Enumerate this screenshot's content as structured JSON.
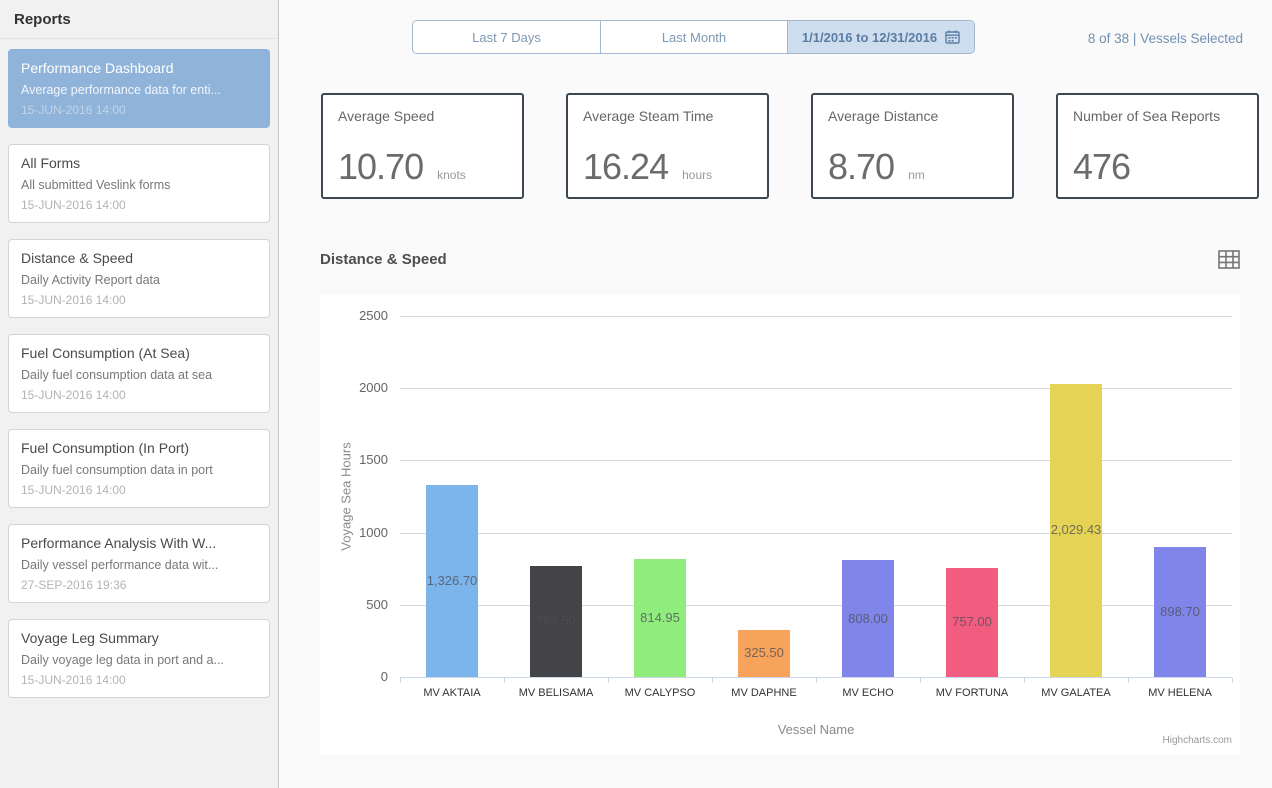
{
  "colors": {
    "selected_card": "#8fb3d9",
    "active_button_bg": "#cfdeee",
    "active_button_text": "#5b7da3",
    "kpi_border": "#3d4751",
    "vessels_text": "#7191b2"
  },
  "sidebar": {
    "title": "Reports",
    "items": [
      {
        "title": "Performance Dashboard",
        "subtitle": "Average performance data for enti...",
        "date": "15-JUN-2016 14:00",
        "selected": true
      },
      {
        "title": "All Forms",
        "subtitle": "All submitted Veslink forms",
        "date": "15-JUN-2016 14:00",
        "selected": false
      },
      {
        "title": "Distance & Speed",
        "subtitle": "Daily Activity Report data",
        "date": "15-JUN-2016 14:00",
        "selected": false
      },
      {
        "title": "Fuel Consumption (At Sea)",
        "subtitle": "Daily fuel consumption data at sea",
        "date": "15-JUN-2016 14:00",
        "selected": false
      },
      {
        "title": "Fuel Consumption (In Port)",
        "subtitle": "Daily fuel consumption data in port",
        "date": "15-JUN-2016 14:00",
        "selected": false
      },
      {
        "title": "Performance Analysis With W...",
        "subtitle": "Daily vessel performance data wit...",
        "date": "27-SEP-2016 19:36",
        "selected": false
      },
      {
        "title": "Voyage Leg Summary",
        "subtitle": "Daily voyage leg data in port and a...",
        "date": "15-JUN-2016 14:00",
        "selected": false
      }
    ]
  },
  "toolbar": {
    "buttons": [
      {
        "label": "Last 7 Days",
        "active": false
      },
      {
        "label": "Last Month",
        "active": false
      },
      {
        "label": "1/1/2016 to 12/31/2016",
        "active": true,
        "icon": "calendar-icon"
      }
    ],
    "vessels_selected": "8 of 38 | Vessels Selected"
  },
  "kpis": [
    {
      "label": "Average Speed",
      "value": "10.70",
      "unit": "knots"
    },
    {
      "label": "Average Steam Time",
      "value": "16.24",
      "unit": "hours"
    },
    {
      "label": "Average Distance",
      "value": "8.70",
      "unit": "nm"
    },
    {
      "label": "Number of Sea Reports",
      "value": "476",
      "unit": ""
    }
  ],
  "chart_section": {
    "title": "Distance & Speed"
  },
  "chart_data": {
    "type": "bar",
    "title": "Distance & Speed",
    "categories": [
      "MV AKTAIA",
      "MV BELISAMA",
      "MV CALYPSO",
      "MV DAPHNE",
      "MV ECHO",
      "MV FORTUNA",
      "MV GALATEA",
      "MV HELENA"
    ],
    "values": [
      1326.7,
      769.5,
      814.95,
      325.5,
      808.0,
      757.0,
      2029.43,
      898.7
    ],
    "value_labels": [
      "1,326.70",
      "769.50",
      "814.95",
      "325.50",
      "808.00",
      "757.00",
      "2,029.43",
      "898.70"
    ],
    "bar_colors": [
      "#7cb5ec",
      "#434348",
      "#90ed7d",
      "#f7a35c",
      "#8085e9",
      "#f15c80",
      "#e4d354",
      "#8085e9"
    ],
    "xlabel": "Vessel Name",
    "ylabel": "Voyage Sea Hours",
    "ylim": [
      0,
      2500
    ],
    "yticks": [
      0,
      500,
      1000,
      1500,
      2000,
      2500
    ],
    "grid": true,
    "legend": false,
    "credit": "Highcharts.com"
  }
}
